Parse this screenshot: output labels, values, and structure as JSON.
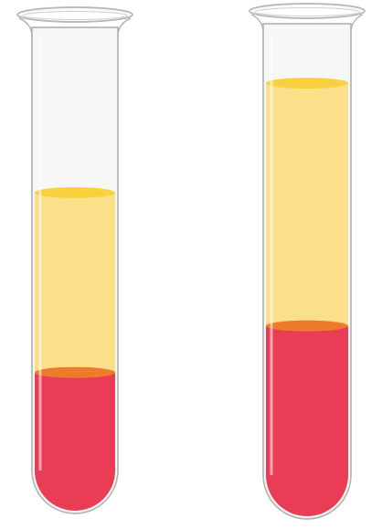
{
  "colors": {
    "background": "#ffffff",
    "glass_outline": "#b5b5b5",
    "glass_fill": "#f7f7f7",
    "plasma": "#fbe08a",
    "plasma_surface": "#f8d23e",
    "red_cells": "#ea3d55",
    "red_cells_surface": "#ee7b2c"
  },
  "tubes": [
    {
      "id": "left",
      "plasma_fill_fraction": 0.37,
      "red_cells_fill_fraction": 0.29
    },
    {
      "id": "right",
      "plasma_fill_fraction": 0.49,
      "red_cells_fill_fraction": 0.39
    }
  ]
}
